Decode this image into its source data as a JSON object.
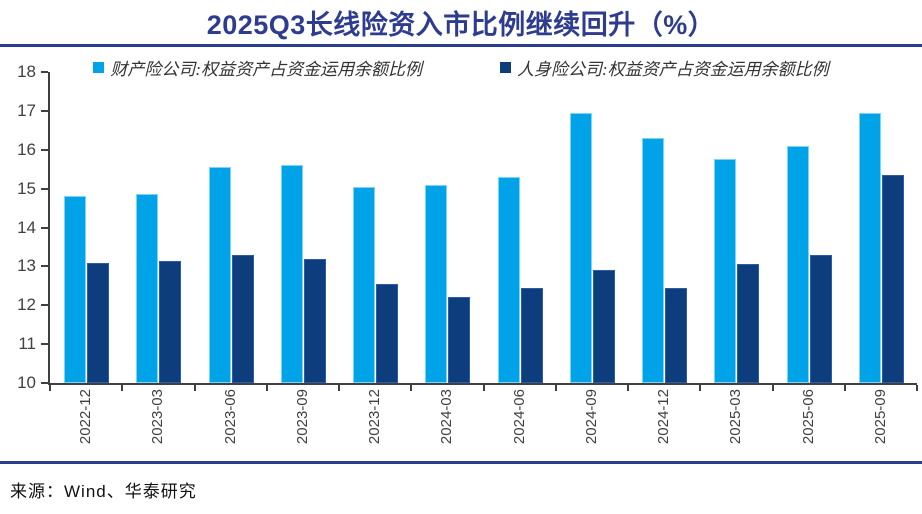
{
  "title": "2025Q3长线险资入市比例继续回升（%）",
  "source": "来源：Wind、华泰研究",
  "colors": {
    "title_blue": "#2e3c90",
    "rule_blue": "#2b3d8f",
    "axis_gray": "#404040",
    "series_property_blue": "#00a2e8",
    "series_life_navy": "#0e3d7d"
  },
  "chart_data": {
    "type": "bar",
    "title": "2025Q3长线险资入市比例继续回升（%）",
    "xlabel": "",
    "ylabel": "",
    "ylim": [
      10,
      18
    ],
    "ytick_step": 1,
    "grid": false,
    "legend_position": "top",
    "categories": [
      "2022-12",
      "2023-03",
      "2023-06",
      "2023-09",
      "2023-12",
      "2024-03",
      "2024-06",
      "2024-09",
      "2024-12",
      "2025-03",
      "2025-06",
      "2025-09"
    ],
    "series": [
      {
        "name": "财产险公司:权益资产占资金运用余额比例",
        "color": "#00a2e8",
        "border_color": "#7fd4f5",
        "values": [
          14.8,
          14.85,
          15.55,
          15.6,
          15.05,
          15.1,
          15.3,
          16.95,
          16.3,
          15.75,
          16.1,
          16.95
        ]
      },
      {
        "name": "人身险公司:权益资产占资金运用余额比例",
        "color": "#0e3d7d",
        "border_color": "#2b5ca8",
        "values": [
          13.1,
          13.15,
          13.3,
          13.2,
          12.55,
          12.2,
          12.45,
          12.9,
          12.45,
          13.05,
          13.3,
          15.35
        ]
      }
    ]
  }
}
